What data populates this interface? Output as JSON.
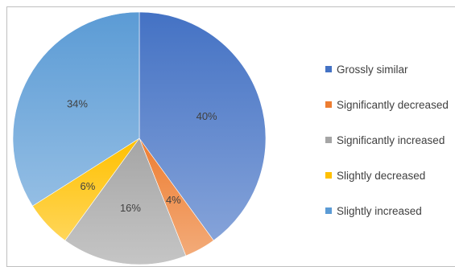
{
  "chart_data": {
    "type": "pie",
    "title": "",
    "categories": [
      "Grossly similar",
      "Significantly decreased",
      "Significantly increased",
      "Slightly decreased",
      "Slightly increased"
    ],
    "values": [
      40,
      4,
      16,
      6,
      34
    ],
    "value_labels": [
      "40%",
      "4%",
      "16%",
      "6%",
      "34%"
    ],
    "colors": [
      "#4472c4",
      "#ed7d31",
      "#a5a5a5",
      "#ffc000",
      "#5b9bd5"
    ],
    "start_angle_deg": 0,
    "direction": "clockwise",
    "legend_position": "right"
  }
}
